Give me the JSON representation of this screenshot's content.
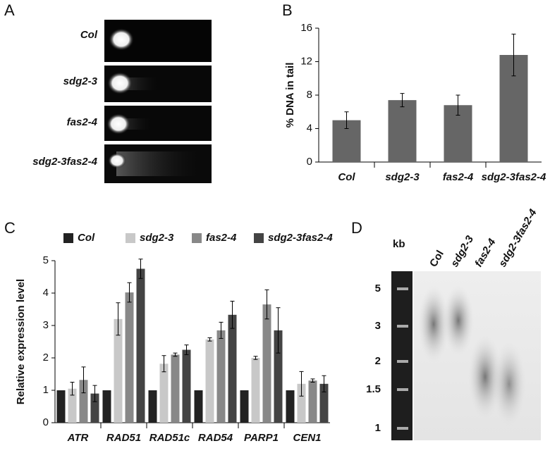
{
  "panel_labels": [
    "A",
    "B",
    "C",
    "D"
  ],
  "panel_a": {
    "labels": [
      "Col",
      "sdg2-3",
      "fas2-4",
      "sdg2-3fas2-4"
    ]
  },
  "panel_d": {
    "unit": "kb",
    "lane_labels": [
      "Col",
      "sdg2-3",
      "fas2-4",
      "sdg2-3fas2-4"
    ],
    "ladder_labels": [
      "5",
      "3",
      "2",
      "1.5",
      "1"
    ]
  },
  "chart_data": [
    {
      "type": "bar",
      "y_label": "% DNA in tail",
      "categories": [
        "Col",
        "sdg2-3",
        "fas2-4",
        "sdg2-3fas2-4"
      ],
      "series": [
        {
          "color": "#666666",
          "values": [
            5.0,
            7.4,
            6.8,
            12.8
          ],
          "errors": [
            1.0,
            0.8,
            1.2,
            2.5
          ]
        }
      ],
      "ylim": [
        0,
        16
      ],
      "yticks": [
        0,
        4,
        8,
        12,
        16
      ]
    },
    {
      "type": "bar",
      "y_label": "Relative expression level",
      "categories": [
        "ATR",
        "RAD51",
        "RAD51c",
        "RAD54",
        "PARP1",
        "CEN1"
      ],
      "series": [
        {
          "name": "Col",
          "color": "#222222",
          "values": [
            1,
            1,
            1,
            1,
            1,
            1
          ]
        },
        {
          "name": "sdg2-3",
          "color": "#c8c8c8",
          "values": [
            1.05,
            3.2,
            1.82,
            2.57,
            2.0,
            1.2
          ],
          "errors": [
            0.2,
            0.5,
            0.25,
            0.05,
            0.05,
            0.38
          ]
        },
        {
          "name": "fas2-4",
          "color": "#888888",
          "values": [
            1.32,
            4.02,
            2.1,
            2.85,
            3.65,
            1.3
          ],
          "errors": [
            0.4,
            0.3,
            0.05,
            0.25,
            0.45,
            0.05
          ]
        },
        {
          "name": "sdg2-3fas2-4",
          "color": "#444444",
          "values": [
            0.9,
            4.75,
            2.25,
            3.33,
            2.85,
            1.2
          ],
          "errors": [
            0.25,
            0.3,
            0.15,
            0.42,
            0.7,
            0.25
          ]
        }
      ],
      "ylim": [
        0,
        5
      ],
      "yticks": [
        0,
        1,
        2,
        3,
        4,
        5
      ]
    }
  ]
}
